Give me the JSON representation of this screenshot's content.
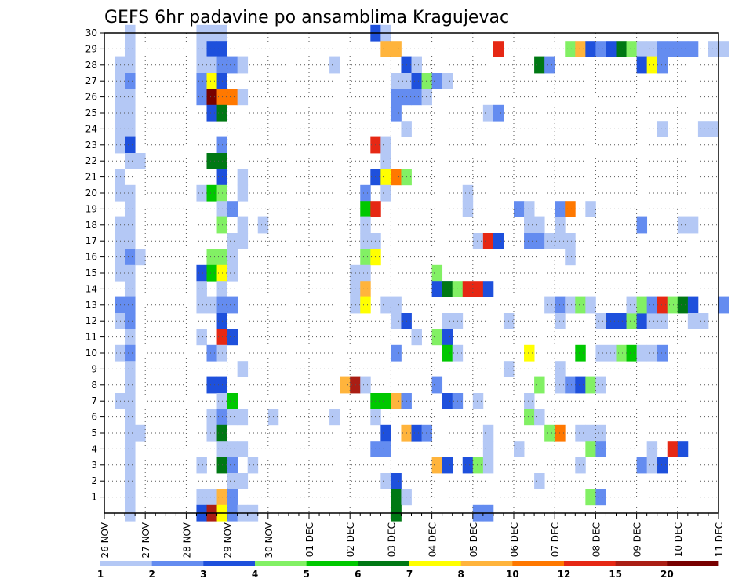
{
  "chart_data": {
    "type": "heatmap",
    "title": "GEFS 6hr padavine po ansamblima Kragujevac",
    "xlabel": "",
    "ylabel": "",
    "x_ticks": [
      "26 NOV",
      "27 NOV",
      "28 NOV",
      "29 NOV",
      "30 NOV",
      "01 DEC",
      "02 DEC",
      "03 DEC",
      "04 DEC",
      "05 DEC",
      "06 DEC",
      "07 DEC",
      "08 DEC",
      "09 DEC",
      "10 DEC",
      "11 DEC"
    ],
    "x_range": [
      "26 NOV",
      "11 DEC"
    ],
    "x_steps_per_day": 4,
    "y_ticks": [
      1,
      2,
      3,
      4,
      5,
      6,
      7,
      8,
      9,
      10,
      11,
      12,
      13,
      14,
      15,
      16,
      17,
      18,
      19,
      20,
      21,
      22,
      23,
      24,
      25,
      26,
      27,
      28,
      29,
      30
    ],
    "y_range": [
      0,
      30
    ],
    "grid": "dotted",
    "colorbar": {
      "levels": [
        1,
        2,
        3,
        4,
        5,
        6,
        7,
        8,
        10,
        12,
        15,
        20
      ],
      "labels": [
        "1",
        "2",
        "3",
        "4",
        "5",
        "6",
        "7",
        "8",
        "10",
        "12",
        "15",
        "20"
      ],
      "colors": [
        "#b4c8f5",
        "#648cf0",
        "#1e50dc",
        "#82f064",
        "#00c800",
        "#007814",
        "#ffff00",
        "#ffb43c",
        "#ff7800",
        "#e62814",
        "#aa1e14",
        "#780000"
      ]
    },
    "cell_encoding": "[step, member, value_mm]; step = 6-hour interval index from 26 NOV 00UTC",
    "cells": [
      [
        2,
        30,
        1.5
      ],
      [
        2,
        29,
        1.5
      ],
      [
        1,
        28,
        1.5
      ],
      [
        2,
        28,
        1.5
      ],
      [
        1,
        27,
        1.5
      ],
      [
        2,
        27,
        2.5
      ],
      [
        1,
        26,
        1.5
      ],
      [
        2,
        26,
        1.5
      ],
      [
        1,
        25,
        1.5
      ],
      [
        2,
        25,
        1.5
      ],
      [
        1,
        24,
        1.5
      ],
      [
        2,
        24,
        1.5
      ],
      [
        1,
        23,
        1.5
      ],
      [
        2,
        23,
        3.5
      ],
      [
        2,
        22,
        1.5
      ],
      [
        3,
        22,
        1.5
      ],
      [
        1,
        21,
        1.5
      ],
      [
        1,
        20,
        1.5
      ],
      [
        2,
        20,
        1.5
      ],
      [
        2,
        19,
        1.5
      ],
      [
        1,
        18,
        1.5
      ],
      [
        2,
        18,
        1.5
      ],
      [
        1,
        17,
        1.5
      ],
      [
        2,
        17,
        1.5
      ],
      [
        1,
        16,
        1.5
      ],
      [
        2,
        16,
        2.5
      ],
      [
        3,
        16,
        1.5
      ],
      [
        1,
        15,
        1.5
      ],
      [
        2,
        15,
        1.5
      ],
      [
        2,
        14,
        1.5
      ],
      [
        1,
        13,
        2.5
      ],
      [
        2,
        13,
        2.5
      ],
      [
        1,
        12,
        1.5
      ],
      [
        2,
        12,
        2.5
      ],
      [
        2,
        11,
        1.5
      ],
      [
        1,
        10,
        1.5
      ],
      [
        2,
        10,
        2.5
      ],
      [
        2,
        9,
        1.5
      ],
      [
        2,
        8,
        1.5
      ],
      [
        1,
        7,
        1.5
      ],
      [
        2,
        7,
        1.5
      ],
      [
        2,
        6,
        1.5
      ],
      [
        2,
        5,
        1.5
      ],
      [
        3,
        5,
        1.5
      ],
      [
        2,
        4,
        1.5
      ],
      [
        2,
        3,
        1.5
      ],
      [
        2,
        2,
        1.5
      ],
      [
        2,
        1,
        1.5
      ],
      [
        2,
        0,
        1.5
      ],
      [
        9,
        30,
        1.5
      ],
      [
        10,
        30,
        1.5
      ],
      [
        11,
        30,
        1.5
      ],
      [
        9,
        29,
        1.5
      ],
      [
        10,
        29,
        3.5
      ],
      [
        11,
        29,
        3.5
      ],
      [
        9,
        28,
        1.5
      ],
      [
        10,
        28,
        1.5
      ],
      [
        11,
        28,
        2.5
      ],
      [
        12,
        28,
        2.5
      ],
      [
        13,
        28,
        1.5
      ],
      [
        9,
        27,
        2.5
      ],
      [
        10,
        27,
        7.5
      ],
      [
        11,
        27,
        3.5
      ],
      [
        9,
        26,
        2.5
      ],
      [
        10,
        26,
        21
      ],
      [
        11,
        26,
        11
      ],
      [
        12,
        26,
        11
      ],
      [
        13,
        26,
        1.5
      ],
      [
        10,
        25,
        3.5
      ],
      [
        11,
        25,
        6.5
      ],
      [
        11,
        23,
        2.5
      ],
      [
        10,
        22,
        6.5
      ],
      [
        11,
        22,
        6.5
      ],
      [
        11,
        21,
        3.5
      ],
      [
        13,
        21,
        1.5
      ],
      [
        9,
        20,
        1.5
      ],
      [
        10,
        20,
        5.5
      ],
      [
        11,
        20,
        4.5
      ],
      [
        13,
        20,
        1.5
      ],
      [
        11,
        19,
        1.5
      ],
      [
        12,
        19,
        2.5
      ],
      [
        11,
        18,
        4.5
      ],
      [
        13,
        18,
        1.5
      ],
      [
        15,
        18,
        1.5
      ],
      [
        12,
        17,
        1.5
      ],
      [
        13,
        17,
        1.5
      ],
      [
        10,
        16,
        4.5
      ],
      [
        11,
        16,
        4.5
      ],
      [
        12,
        16,
        1.5
      ],
      [
        9,
        15,
        3.5
      ],
      [
        10,
        15,
        5.5
      ],
      [
        11,
        15,
        7.5
      ],
      [
        12,
        15,
        1.5
      ],
      [
        9,
        14,
        1.5
      ],
      [
        11,
        14,
        1.5
      ],
      [
        9,
        13,
        1.5
      ],
      [
        10,
        13,
        1.5
      ],
      [
        11,
        13,
        2.5
      ],
      [
        12,
        13,
        2.5
      ],
      [
        11,
        12,
        3.5
      ],
      [
        9,
        11,
        1.5
      ],
      [
        11,
        11,
        13
      ],
      [
        12,
        11,
        3.5
      ],
      [
        10,
        10,
        2.5
      ],
      [
        11,
        10,
        1.5
      ],
      [
        13,
        9,
        1.5
      ],
      [
        10,
        8,
        3.5
      ],
      [
        11,
        8,
        3.5
      ],
      [
        11,
        7,
        1.5
      ],
      [
        12,
        7,
        5.5
      ],
      [
        10,
        6,
        1.5
      ],
      [
        11,
        6,
        2.5
      ],
      [
        12,
        6,
        1.5
      ],
      [
        13,
        6,
        1.5
      ],
      [
        10,
        5,
        1.5
      ],
      [
        11,
        5,
        6.5
      ],
      [
        11,
        4,
        1.5
      ],
      [
        12,
        4,
        1.5
      ],
      [
        13,
        4,
        1.5
      ],
      [
        9,
        3,
        1.5
      ],
      [
        11,
        3,
        6.5
      ],
      [
        12,
        3,
        2.5
      ],
      [
        14,
        3,
        1.5
      ],
      [
        12,
        2,
        1.5
      ],
      [
        13,
        2,
        1.5
      ],
      [
        9,
        1,
        1.5
      ],
      [
        10,
        1,
        1.5
      ],
      [
        11,
        1,
        9
      ],
      [
        12,
        1,
        2.5
      ],
      [
        9,
        0,
        3.5
      ],
      [
        10,
        0,
        17
      ],
      [
        11,
        0,
        7.5
      ],
      [
        12,
        0,
        2.5
      ],
      [
        13,
        0,
        1.5
      ],
      [
        14,
        0,
        1.5
      ],
      [
        16,
        6,
        1.5
      ],
      [
        22,
        28,
        1.5
      ],
      [
        22,
        6,
        1.5
      ],
      [
        26,
        30,
        3.5
      ],
      [
        27,
        30,
        1.5
      ],
      [
        27,
        29,
        9
      ],
      [
        28,
        29,
        9
      ],
      [
        29,
        28,
        3.5
      ],
      [
        30,
        28,
        1.5
      ],
      [
        28,
        27,
        1.5
      ],
      [
        29,
        27,
        1.5
      ],
      [
        30,
        27,
        3.5
      ],
      [
        31,
        27,
        4.5
      ],
      [
        32,
        27,
        2.5
      ],
      [
        33,
        27,
        1.5
      ],
      [
        28,
        26,
        2.5
      ],
      [
        29,
        26,
        2.5
      ],
      [
        30,
        26,
        2.5
      ],
      [
        31,
        26,
        1.5
      ],
      [
        28,
        25,
        2.5
      ],
      [
        29,
        24,
        1.5
      ],
      [
        26,
        23,
        13
      ],
      [
        27,
        23,
        1.5
      ],
      [
        27,
        22,
        1.5
      ],
      [
        26,
        21,
        3.5
      ],
      [
        27,
        21,
        7.5
      ],
      [
        28,
        21,
        11
      ],
      [
        29,
        21,
        4.5
      ],
      [
        25,
        20,
        2.5
      ],
      [
        27,
        20,
        1.5
      ],
      [
        25,
        19,
        5.5
      ],
      [
        26,
        19,
        13
      ],
      [
        25,
        18,
        1.5
      ],
      [
        25,
        17,
        1.5
      ],
      [
        26,
        17,
        1.5
      ],
      [
        25,
        16,
        4.5
      ],
      [
        26,
        16,
        7.5
      ],
      [
        25,
        15,
        1.5
      ],
      [
        24,
        15,
        1.5
      ],
      [
        24,
        14,
        1.5
      ],
      [
        25,
        14,
        9
      ],
      [
        24,
        13,
        1.5
      ],
      [
        25,
        13,
        7.5
      ],
      [
        27,
        13,
        1.5
      ],
      [
        28,
        13,
        1.5
      ],
      [
        28,
        12,
        1.5
      ],
      [
        29,
        12,
        3.5
      ],
      [
        30,
        11,
        1.5
      ],
      [
        28,
        10,
        2.5
      ],
      [
        23,
        8,
        9
      ],
      [
        24,
        8,
        17
      ],
      [
        25,
        8,
        1.5
      ],
      [
        26,
        7,
        5.5
      ],
      [
        27,
        7,
        5.5
      ],
      [
        28,
        7,
        9
      ],
      [
        29,
        7,
        2.5
      ],
      [
        26,
        6,
        1.5
      ],
      [
        27,
        5,
        3.5
      ],
      [
        29,
        5,
        9
      ],
      [
        30,
        5,
        3.5
      ],
      [
        31,
        5,
        2.5
      ],
      [
        26,
        4,
        2.5
      ],
      [
        27,
        4,
        2.5
      ],
      [
        27,
        2,
        1.5
      ],
      [
        28,
        2,
        3.5
      ],
      [
        28,
        1,
        6.5
      ],
      [
        29,
        1,
        1.5
      ],
      [
        28,
        0,
        6.5
      ],
      [
        32,
        15,
        4.5
      ],
      [
        33,
        14,
        3.5
      ],
      [
        33,
        12,
        1.5
      ],
      [
        34,
        12,
        1.5
      ],
      [
        32,
        11,
        4.5
      ],
      [
        33,
        11,
        3.5
      ],
      [
        33,
        10,
        5.5
      ],
      [
        34,
        10,
        1.5
      ],
      [
        32,
        8,
        2.5
      ],
      [
        33,
        7,
        3.5
      ],
      [
        34,
        7,
        2.5
      ],
      [
        36,
        7,
        1.5
      ],
      [
        32,
        3,
        9
      ],
      [
        33,
        3,
        3.5
      ],
      [
        35,
        3,
        3.5
      ],
      [
        36,
        3,
        4.5
      ],
      [
        37,
        3,
        1.5
      ],
      [
        37,
        4,
        1.5
      ],
      [
        37,
        5,
        1.5
      ],
      [
        36,
        0,
        2.5
      ],
      [
        37,
        0,
        2.5
      ],
      [
        32,
        14,
        3.5
      ],
      [
        33,
        14,
        6.5
      ],
      [
        34,
        14,
        4.5
      ],
      [
        35,
        14,
        13
      ],
      [
        36,
        14,
        13
      ],
      [
        37,
        14,
        3.5
      ],
      [
        35,
        20,
        1.5
      ],
      [
        35,
        19,
        1.5
      ],
      [
        36,
        17,
        1.5
      ],
      [
        37,
        17,
        13
      ],
      [
        38,
        17,
        3.5
      ],
      [
        37,
        25,
        1.5
      ],
      [
        38,
        25,
        2.5
      ],
      [
        38,
        29,
        13
      ],
      [
        39,
        12,
        1.5
      ],
      [
        39,
        9,
        1.5
      ],
      [
        40,
        4,
        1.5
      ],
      [
        40,
        19,
        2.5
      ],
      [
        41,
        19,
        1.5
      ],
      [
        41,
        18,
        1.5
      ],
      [
        42,
        18,
        1.5
      ],
      [
        41,
        17,
        2.5
      ],
      [
        42,
        17,
        2.5
      ],
      [
        43,
        17,
        1.5
      ],
      [
        44,
        17,
        1.5
      ],
      [
        45,
        17,
        1.5
      ],
      [
        44,
        18,
        1.5
      ],
      [
        45,
        16,
        1.5
      ],
      [
        41,
        10,
        7.5
      ],
      [
        41,
        7,
        1.5
      ],
      [
        42,
        8,
        4.5
      ],
      [
        41,
        6,
        4.5
      ],
      [
        42,
        6,
        1.5
      ],
      [
        42,
        2,
        1.5
      ],
      [
        42,
        28,
        6.5
      ],
      [
        43,
        28,
        2.5
      ],
      [
        43,
        13,
        1.5
      ],
      [
        44,
        13,
        2.5
      ],
      [
        45,
        13,
        1.5
      ],
      [
        46,
        13,
        4.5
      ],
      [
        47,
        13,
        1.5
      ],
      [
        44,
        12,
        1.5
      ],
      [
        43,
        5,
        4.5
      ],
      [
        44,
        5,
        11
      ],
      [
        44,
        9,
        1.5
      ],
      [
        44,
        8,
        1.5
      ],
      [
        45,
        8,
        2.5
      ],
      [
        46,
        8,
        3.5
      ],
      [
        47,
        8,
        4.5
      ],
      [
        48,
        8,
        1.5
      ],
      [
        44,
        19,
        2.5
      ],
      [
        45,
        19,
        11
      ],
      [
        47,
        19,
        1.5
      ],
      [
        46,
        3,
        1.5
      ],
      [
        46,
        10,
        5.5
      ],
      [
        46,
        5,
        1.5
      ],
      [
        47,
        5,
        1.5
      ],
      [
        48,
        5,
        1.5
      ],
      [
        47,
        4,
        4.5
      ],
      [
        48,
        4,
        2.5
      ],
      [
        47,
        1,
        4.5
      ],
      [
        48,
        1,
        2.5
      ],
      [
        48,
        12,
        1.5
      ],
      [
        49,
        12,
        3.5
      ],
      [
        50,
        12,
        3.5
      ],
      [
        51,
        12,
        4.5
      ],
      [
        52,
        12,
        3.5
      ],
      [
        53,
        12,
        1.5
      ],
      [
        54,
        12,
        1.5
      ],
      [
        48,
        10,
        1.5
      ],
      [
        49,
        10,
        1.5
      ],
      [
        50,
        10,
        4.5
      ],
      [
        51,
        10,
        5.5
      ],
      [
        52,
        10,
        1.5
      ],
      [
        53,
        10,
        1.5
      ],
      [
        54,
        10,
        2.5
      ],
      [
        51,
        13,
        1.5
      ],
      [
        52,
        13,
        4.5
      ],
      [
        53,
        13,
        2.5
      ],
      [
        54,
        13,
        13
      ],
      [
        55,
        13,
        4.5
      ],
      [
        56,
        13,
        6.5
      ],
      [
        57,
        13,
        3.5
      ],
      [
        45,
        29,
        4.5
      ],
      [
        46,
        29,
        9
      ],
      [
        47,
        29,
        3.5
      ],
      [
        48,
        29,
        2.5
      ],
      [
        49,
        29,
        3.5
      ],
      [
        50,
        29,
        6.5
      ],
      [
        51,
        29,
        4.5
      ],
      [
        52,
        29,
        1.5
      ],
      [
        53,
        29,
        1.5
      ],
      [
        54,
        29,
        2.5
      ],
      [
        55,
        29,
        2.5
      ],
      [
        56,
        29,
        2.5
      ],
      [
        57,
        29,
        2.5
      ],
      [
        59,
        29,
        1.5
      ],
      [
        60,
        29,
        1.5
      ],
      [
        52,
        28,
        3.5
      ],
      [
        53,
        28,
        7.5
      ],
      [
        54,
        28,
        2.5
      ],
      [
        52,
        18,
        2.5
      ],
      [
        56,
        18,
        1.5
      ],
      [
        57,
        18,
        1.5
      ],
      [
        54,
        24,
        1.5
      ],
      [
        58,
        24,
        1.5
      ],
      [
        59,
        24,
        1.5
      ],
      [
        53,
        4,
        1.5
      ],
      [
        55,
        4,
        13
      ],
      [
        56,
        4,
        3.5
      ],
      [
        52,
        3,
        2.5
      ],
      [
        53,
        3,
        1.5
      ],
      [
        54,
        3,
        3.5
      ],
      [
        57,
        12,
        1.5
      ],
      [
        58,
        12,
        1.5
      ],
      [
        60,
        13,
        2.5
      ]
    ]
  }
}
